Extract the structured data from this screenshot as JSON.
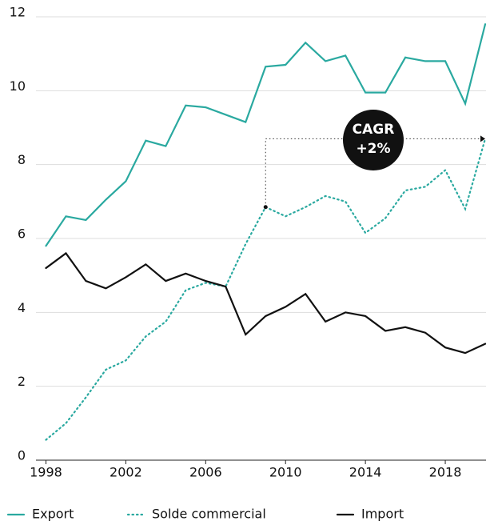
{
  "chart_data": {
    "type": "line",
    "x": [
      1998,
      1999,
      2000,
      2001,
      2002,
      2003,
      2004,
      2005,
      2006,
      2007,
      2008,
      2009,
      2010,
      2011,
      2012,
      2013,
      2014,
      2015,
      2016,
      2017,
      2018,
      2019,
      2020
    ],
    "series": [
      {
        "name": "Export",
        "color": "#2aa9a0",
        "style": "solid",
        "values": [
          5.8,
          6.6,
          6.5,
          7.05,
          7.55,
          8.65,
          8.5,
          9.6,
          9.55,
          9.35,
          9.15,
          10.65,
          10.7,
          11.3,
          10.8,
          10.95,
          9.95,
          9.95,
          10.9,
          10.8,
          10.8,
          9.65,
          11.8
        ]
      },
      {
        "name": "Solde commercial",
        "color": "#2aa9a0",
        "style": "dotted",
        "values": [
          0.55,
          1.0,
          1.7,
          2.45,
          2.7,
          3.35,
          3.75,
          4.6,
          4.8,
          4.7,
          5.85,
          6.85,
          6.6,
          6.85,
          7.15,
          7.0,
          6.15,
          6.55,
          7.3,
          7.4,
          7.85,
          6.8,
          8.7
        ]
      },
      {
        "name": "Import",
        "color": "#111111",
        "style": "solid",
        "values": [
          5.2,
          5.6,
          4.85,
          4.65,
          4.95,
          5.3,
          4.85,
          5.05,
          4.85,
          4.7,
          3.4,
          3.9,
          4.15,
          4.5,
          3.75,
          4.0,
          3.9,
          3.5,
          3.6,
          3.45,
          3.05,
          2.9,
          3.15
        ]
      }
    ],
    "xlim": [
      1997.5,
      2020
    ],
    "xticks": [
      1998,
      2002,
      2006,
      2010,
      2014,
      2018
    ],
    "ylim": [
      0,
      12
    ],
    "yticks": [
      0,
      2,
      4,
      6,
      8,
      10,
      12
    ],
    "grid": true,
    "annotation": {
      "lines": [
        "CAGR",
        "+2%"
      ]
    },
    "legend": "bottom"
  }
}
